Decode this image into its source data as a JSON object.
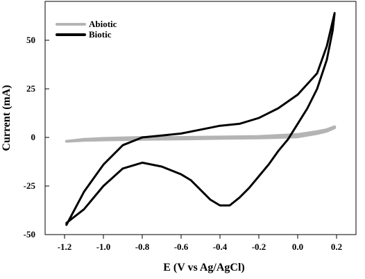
{
  "chart_data": {
    "type": "line",
    "xlabel": "E (V vs Ag/AgCl)",
    "ylabel": "Current (mA)",
    "xlim": [
      -1.3,
      0.3
    ],
    "ylim": [
      -50,
      70
    ],
    "xticks": [
      -1.2,
      -1.0,
      -0.8,
      -0.6,
      -0.4,
      -0.2,
      0.0,
      0.2
    ],
    "xtick_labels": [
      "-1.2",
      "-1.0",
      "-0.8",
      "-0.6",
      "-0.4",
      "-0.2",
      "0.0",
      "0.2"
    ],
    "yticks": [
      -50,
      -25,
      0,
      25,
      50
    ],
    "ytick_labels": [
      "-50",
      "-25",
      "0",
      "25",
      "50"
    ],
    "legend": {
      "position": "top-left"
    },
    "grid": false,
    "series": [
      {
        "name": "Abiotic",
        "color": "#b4b4b4",
        "x": [
          -1.19,
          -1.1,
          -1.0,
          -0.8,
          -0.6,
          -0.4,
          -0.2,
          0.0,
          0.1,
          0.15,
          0.19,
          0.19,
          0.15,
          0.1,
          0.0,
          -0.2,
          -0.4,
          -0.6,
          -0.8,
          -1.0,
          -1.1,
          -1.19
        ],
        "y": [
          -2,
          -1,
          -0.5,
          0,
          0,
          0.2,
          0.5,
          1.5,
          3,
          4,
          5.5,
          5,
          3.2,
          2,
          0.3,
          -0.3,
          -0.5,
          -0.8,
          -1,
          -1.3,
          -1.5,
          -2
        ]
      },
      {
        "name": "Biotic",
        "color": "#000000",
        "x": [
          -1.19,
          -1.1,
          -1.0,
          -0.9,
          -0.8,
          -0.7,
          -0.6,
          -0.5,
          -0.4,
          -0.3,
          -0.2,
          -0.1,
          0.0,
          0.1,
          0.15,
          0.19,
          0.18,
          0.15,
          0.1,
          0.05,
          0.0,
          -0.05,
          -0.1,
          -0.15,
          -0.2,
          -0.25,
          -0.3,
          -0.35,
          -0.4,
          -0.45,
          -0.5,
          -0.55,
          -0.6,
          -0.7,
          -0.8,
          -0.9,
          -1.0,
          -1.1,
          -1.19
        ],
        "y": [
          -45,
          -28,
          -14,
          -4,
          0,
          1,
          2,
          4,
          6,
          7,
          10,
          15,
          22,
          33,
          47,
          64,
          55,
          40,
          25,
          15,
          7,
          -1,
          -7,
          -14,
          -20,
          -26,
          -31,
          -35,
          -35,
          -32,
          -27,
          -22,
          -19,
          -15,
          -13,
          -16,
          -25,
          -37,
          -44
        ]
      }
    ]
  }
}
